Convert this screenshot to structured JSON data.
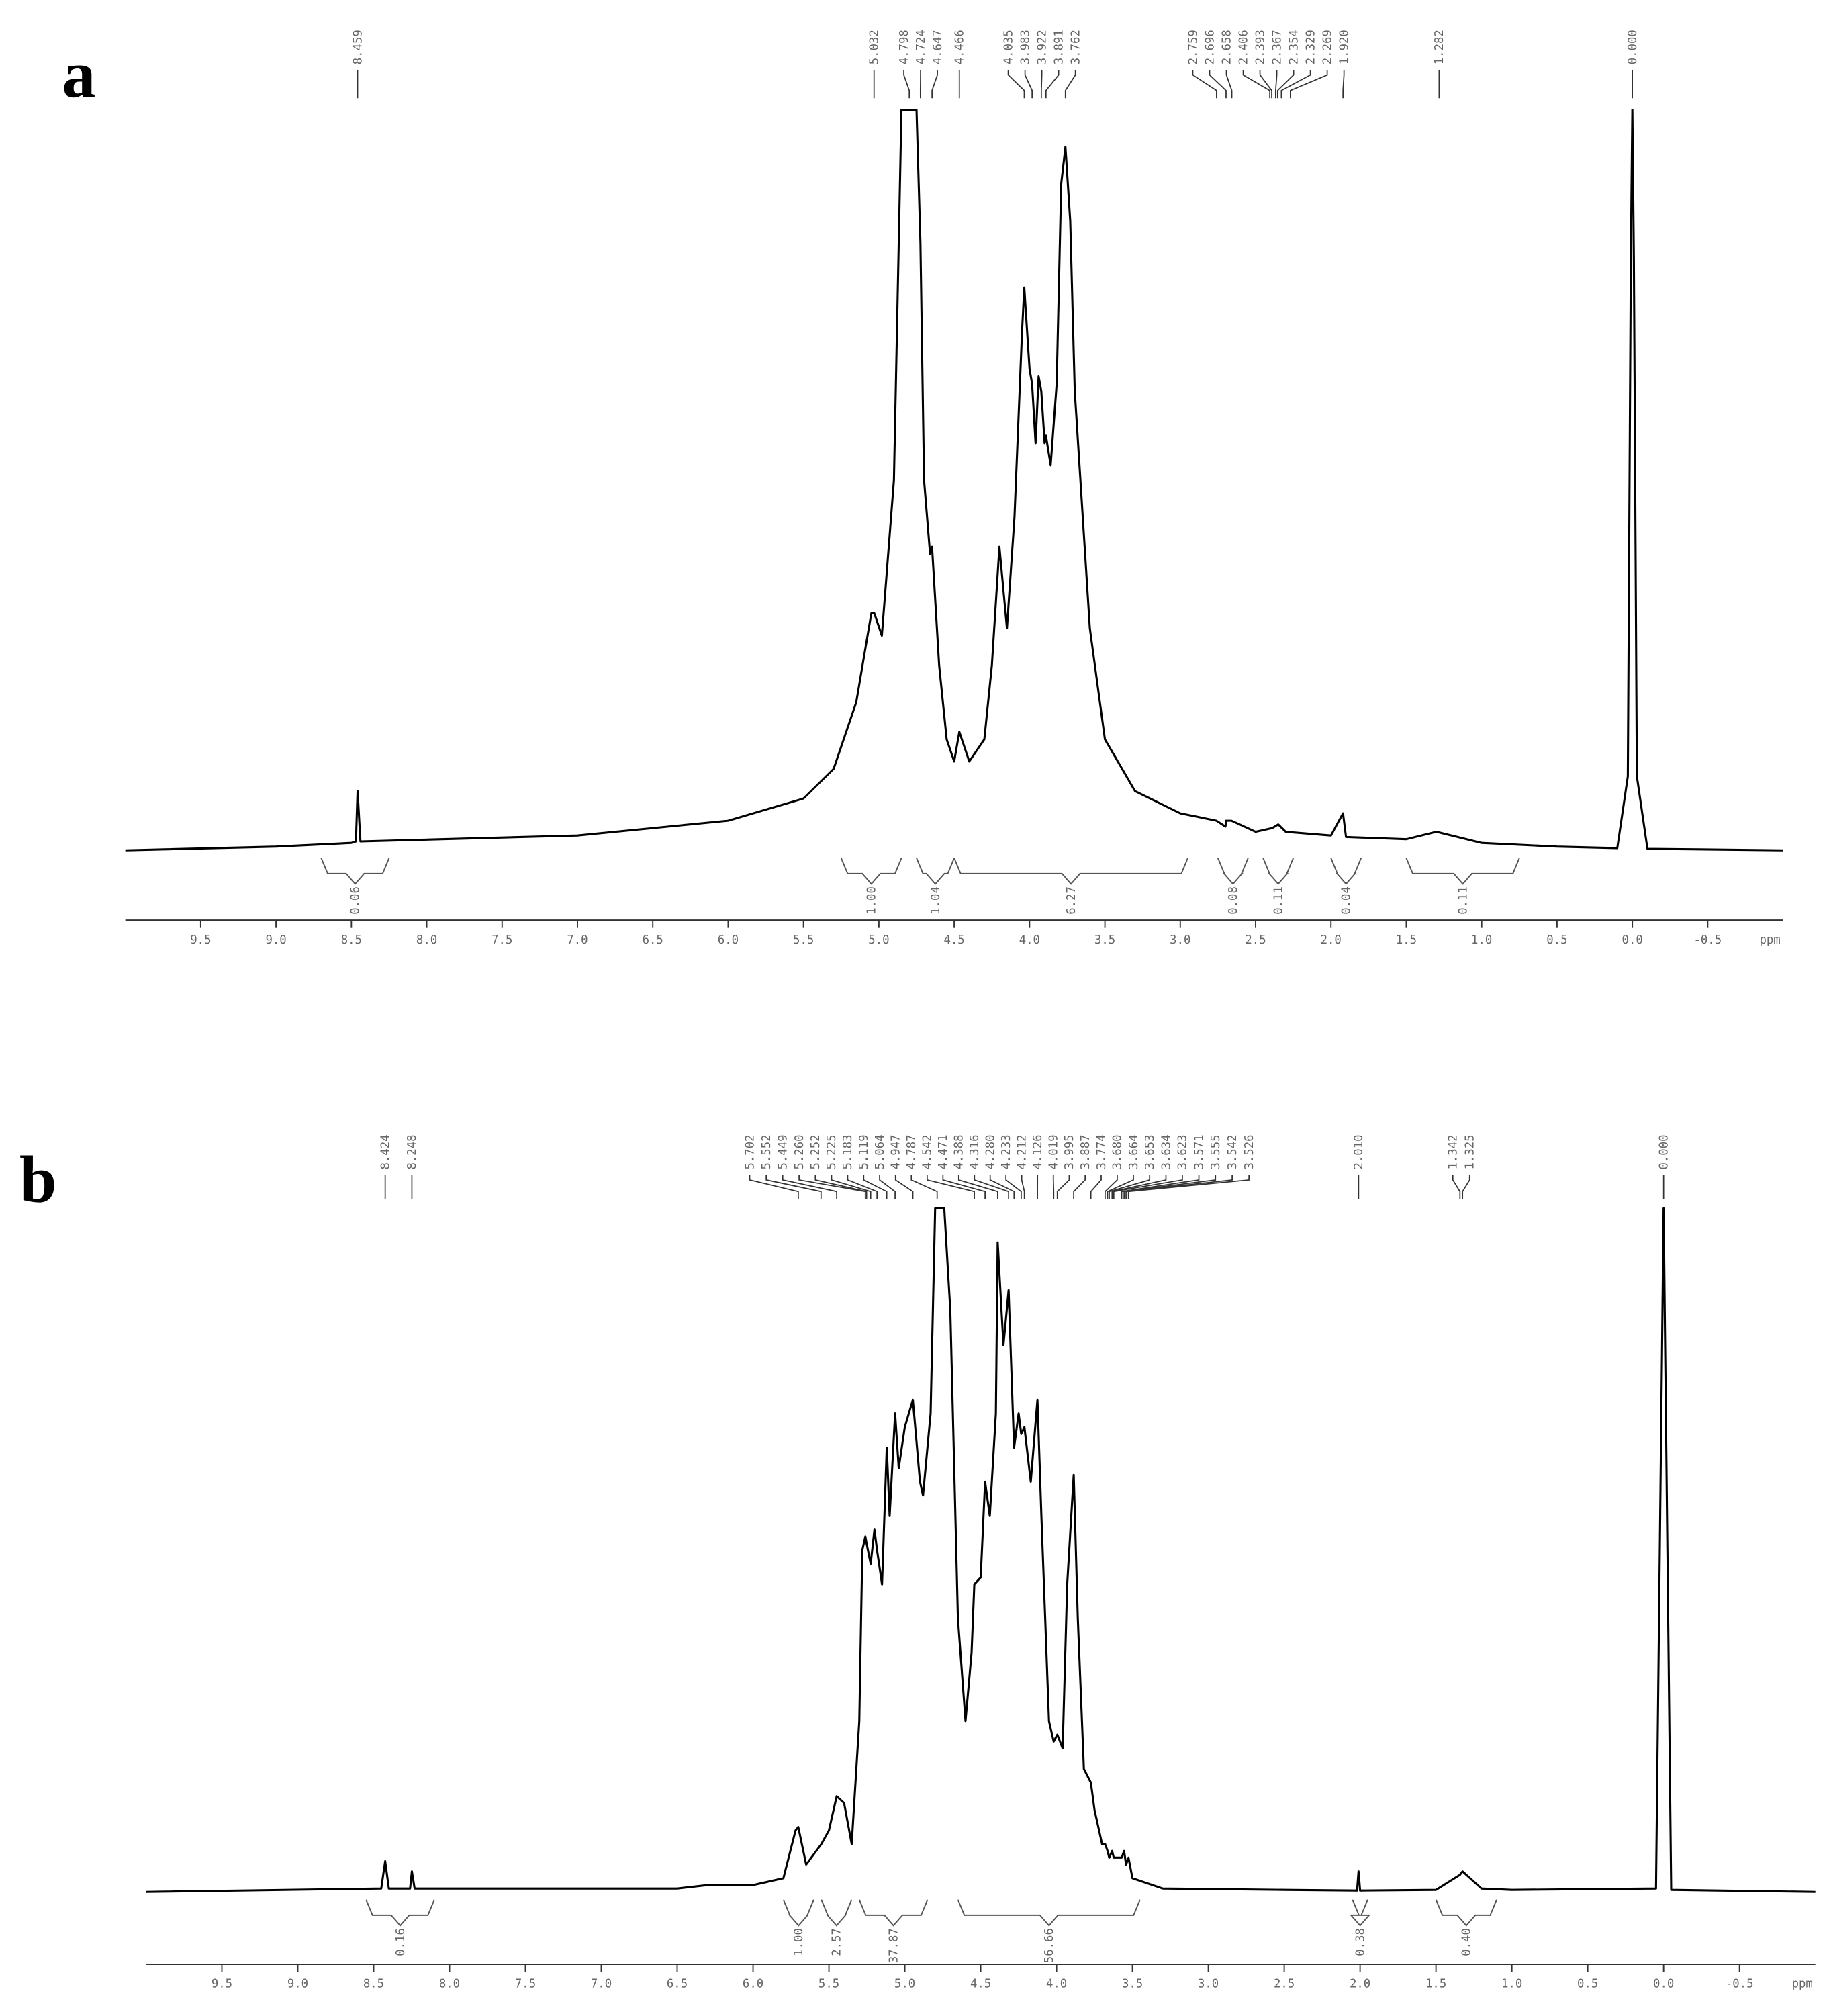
{
  "chart_data": [
    {
      "type": "line",
      "label": "a",
      "x_unit": "ppm",
      "xlim": [
        10.0,
        -1.0
      ],
      "xticks": [
        9.5,
        {
          "value": 9,
          "label": "9.0"
        },
        8.5,
        {
          "value": 8,
          "label": "8.0"
        },
        7.5,
        {
          "value": 7,
          "label": "7.0"
        },
        6.5,
        {
          "value": 6,
          "label": "6.0"
        },
        5.5,
        {
          "value": 5,
          "label": "5.0"
        },
        4.5,
        {
          "value": 4,
          "label": "4.0"
        },
        3.5,
        {
          "value": 3,
          "label": "3.0"
        },
        2.5,
        {
          "value": 2,
          "label": "2.0"
        },
        1.5,
        {
          "value": 1,
          "label": "1.0"
        },
        0.5,
        {
          "value": 0,
          "label": "0.0"
        },
        -0.5
      ],
      "ylim": [
        0,
        100
      ],
      "x": [
        10.0,
        9.0,
        8.5,
        8.47,
        8.459,
        8.44,
        7.0,
        6.0,
        5.5,
        5.3,
        5.15,
        5.05,
        5.03,
        4.98,
        4.9,
        4.85,
        4.8,
        4.75,
        4.724,
        4.7,
        4.66,
        4.647,
        4.6,
        4.55,
        4.5,
        4.466,
        4.4,
        4.3,
        4.25,
        4.2,
        4.15,
        4.1,
        4.05,
        4.035,
        4.0,
        3.983,
        3.96,
        3.94,
        3.922,
        3.9,
        3.891,
        3.86,
        3.82,
        3.79,
        3.762,
        3.73,
        3.7,
        3.6,
        3.5,
        3.3,
        3.0,
        2.76,
        2.7,
        2.696,
        2.66,
        2.5,
        2.39,
        2.35,
        2.3,
        2.0,
        1.92,
        1.9,
        1.5,
        1.3,
        1.2,
        1.0,
        0.5,
        0.1,
        0.03,
        0.01,
        0.0,
        -0.01,
        -0.03,
        -0.1,
        -1.0
      ],
      "series": [
        {
          "color": "#000000",
          "values": [
            0,
            0.5,
            1,
            1.2,
            8,
            1.2,
            2,
            4,
            7,
            11,
            20,
            32,
            32,
            29,
            50,
            100,
            100,
            100,
            82,
            50,
            40,
            41,
            25,
            15,
            12,
            16,
            12,
            15,
            25,
            41,
            30,
            45,
            70,
            76,
            65,
            63,
            55,
            64,
            62,
            55,
            56,
            52,
            63,
            90,
            95,
            85,
            62,
            30,
            15,
            8,
            5,
            4,
            3.2,
            4,
            4,
            2.5,
            3,
            3.5,
            2.5,
            2,
            5,
            1.8,
            1.5,
            2.5,
            2,
            1,
            0.5,
            0.3,
            10,
            80,
            100,
            80,
            10,
            0.2,
            0
          ]
        }
      ],
      "peaks": [
        8.459,
        5.032,
        4.798,
        4.724,
        4.647,
        4.466,
        4.035,
        3.983,
        3.922,
        3.891,
        3.762,
        2.759,
        2.696,
        2.658,
        2.406,
        2.393,
        2.367,
        2.354,
        2.329,
        2.269,
        {
          "value": 1.92,
          "label": "1.920"
        },
        1.282,
        {
          "value": 0,
          "label": "0.000"
        }
      ],
      "integrals": [
        {
          "from": 8.7,
          "to": 8.25,
          "value": 0.06,
          "label": "0.06"
        },
        {
          "from": 5.25,
          "to": 4.85,
          "value": 1,
          "label": "1.00"
        },
        {
          "from": 4.75,
          "to": 4.5,
          "value": 1.04,
          "label": "1.04"
        },
        {
          "from": 4.5,
          "to": 2.95,
          "value": 6.27,
          "label": "6.27"
        },
        {
          "from": 2.75,
          "to": 2.55,
          "value": 0.08,
          "label": "0.08"
        },
        {
          "from": 2.45,
          "to": 2.25,
          "value": 0.11,
          "label": "0.11"
        },
        {
          "from": 2.0,
          "to": 1.8,
          "value": 0.04,
          "label": "0.04"
        },
        {
          "from": 1.5,
          "to": 0.75,
          "value": 0.11,
          "label": "0.11"
        }
      ]
    },
    {
      "type": "line",
      "label": "b",
      "x_unit": "ppm",
      "xlim": [
        10.0,
        -1.0
      ],
      "xticks": [
        9.5,
        {
          "value": 9,
          "label": "9.0"
        },
        8.5,
        {
          "value": 8,
          "label": "8.0"
        },
        7.5,
        {
          "value": 7,
          "label": "7.0"
        },
        6.5,
        {
          "value": 6,
          "label": "6.0"
        },
        5.5,
        {
          "value": 5,
          "label": "5.0"
        },
        4.5,
        {
          "value": 4,
          "label": "4.0"
        },
        3.5,
        {
          "value": 3,
          "label": "3.0"
        },
        2.5,
        {
          "value": 2,
          "label": "2.0"
        },
        1.5,
        {
          "value": 1,
          "label": "1.0"
        },
        0.5,
        {
          "value": 0,
          "label": "0.0"
        },
        -0.5
      ],
      "ylim": [
        0,
        100
      ],
      "x": [
        10.0,
        8.45,
        8.424,
        8.4,
        8.26,
        8.248,
        8.23,
        6.5,
        6.3,
        6.0,
        5.8,
        5.72,
        5.702,
        5.65,
        5.55,
        5.5,
        5.449,
        5.4,
        5.35,
        5.3,
        5.28,
        5.26,
        5.252,
        5.225,
        5.2,
        5.183,
        5.15,
        5.119,
        5.1,
        5.064,
        5.04,
        5.0,
        4.947,
        4.9,
        4.88,
        4.83,
        4.8,
        4.787,
        4.74,
        4.7,
        4.65,
        4.6,
        4.56,
        4.542,
        4.5,
        4.471,
        4.44,
        4.4,
        4.388,
        4.35,
        4.316,
        4.28,
        4.25,
        4.233,
        4.212,
        4.17,
        4.126,
        4.1,
        4.05,
        4.019,
        3.995,
        3.96,
        3.93,
        3.887,
        3.86,
        3.82,
        3.774,
        3.75,
        3.7,
        3.68,
        3.664,
        3.653,
        3.634,
        3.623,
        3.571,
        3.555,
        3.542,
        3.526,
        3.5,
        3.3,
        2.5,
        2.02,
        2.01,
        2.0,
        1.5,
        1.342,
        1.325,
        1.2,
        1.0,
        0.05,
        0.01,
        0.0,
        -0.01,
        -0.05,
        -1.0
      ],
      "series": [
        {
          "color": "#000000",
          "values": [
            0,
            0.5,
            4.5,
            0.5,
            0.5,
            3,
            0.5,
            0.5,
            1,
            1,
            2,
            9,
            9.5,
            4,
            7,
            9,
            14,
            13,
            7,
            25,
            50,
            52,
            51,
            48,
            53,
            50,
            45,
            65,
            55,
            70,
            62,
            68,
            72,
            60,
            58,
            70,
            100,
            100,
            100,
            85,
            40,
            25,
            35,
            45,
            46,
            60,
            55,
            70,
            95,
            80,
            88,
            65,
            70,
            67,
            68,
            60,
            72,
            55,
            25,
            22,
            23,
            21,
            45,
            61,
            40,
            18,
            16,
            12,
            7,
            7,
            6,
            5,
            6,
            5,
            5,
            6,
            4,
            5,
            2,
            0.5,
            0.3,
            0.2,
            3,
            0.2,
            0.3,
            2.5,
            3,
            0.5,
            0.3,
            0.5,
            80,
            100,
            80,
            0.3,
            0
          ]
        }
      ],
      "peaks": [
        8.424,
        8.248,
        5.702,
        5.552,
        5.449,
        {
          "value": 5.26,
          "label": "5.260"
        },
        5.252,
        5.225,
        5.183,
        5.119,
        5.064,
        4.947,
        4.787,
        4.542,
        4.471,
        4.388,
        4.316,
        {
          "value": 4.28,
          "label": "4.280"
        },
        4.233,
        4.212,
        4.126,
        4.019,
        3.995,
        3.887,
        3.774,
        {
          "value": 3.68,
          "label": "3.680"
        },
        3.664,
        3.653,
        3.634,
        3.623,
        3.571,
        3.555,
        3.542,
        3.526,
        {
          "value": 2.01,
          "label": "2.010"
        },
        1.342,
        1.325,
        {
          "value": 0,
          "label": "0.000"
        }
      ],
      "integrals": [
        {
          "from": 8.55,
          "to": 8.1,
          "value": 0.16,
          "label": "0.16"
        },
        {
          "from": 5.8,
          "to": 5.6,
          "value": 1,
          "label": "1.00"
        },
        {
          "from": 5.55,
          "to": 5.35,
          "value": 2.57,
          "label": "2.57"
        },
        {
          "from": 5.3,
          "to": 4.85,
          "value": 37.87,
          "label": "37.87"
        },
        {
          "from": 4.65,
          "to": 3.45,
          "value": 56.66,
          "label": "56.66"
        },
        {
          "from": 2.05,
          "to": 1.95,
          "value": 0.38,
          "label": "0.38"
        },
        {
          "from": 1.5,
          "to": 1.1,
          "value": 0.4,
          "label": "0.40"
        }
      ]
    }
  ]
}
